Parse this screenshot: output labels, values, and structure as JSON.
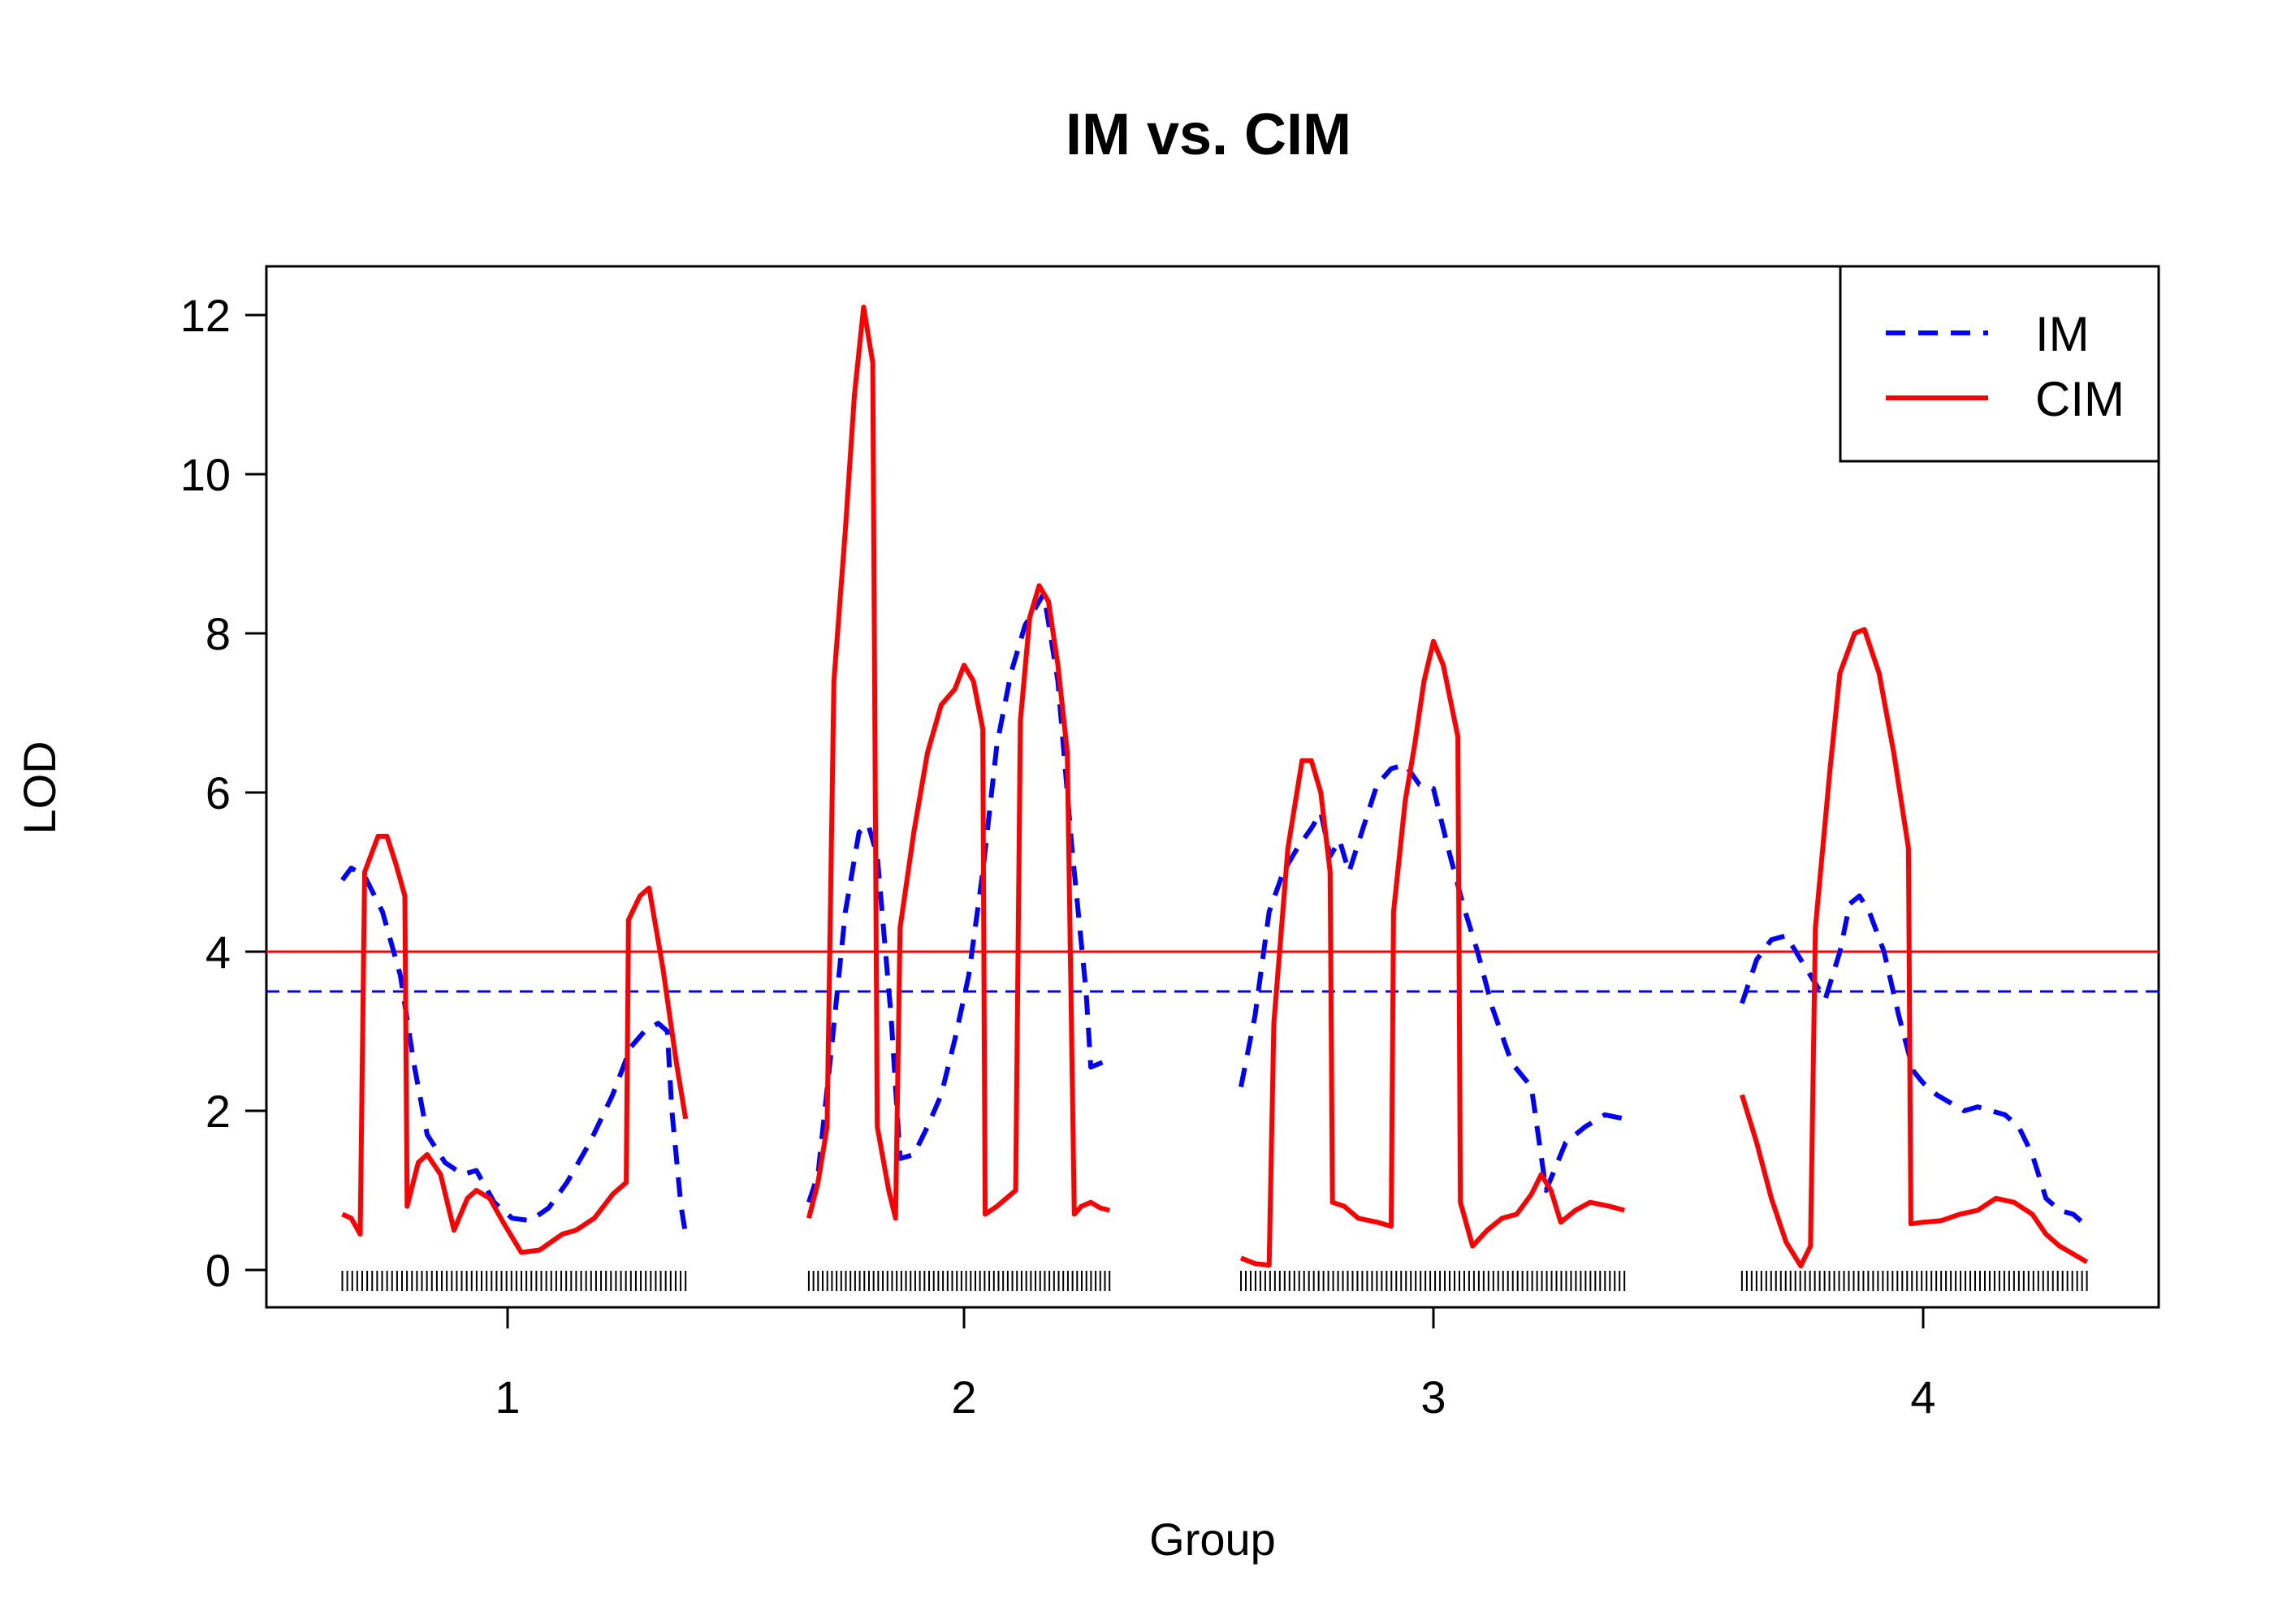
{
  "chart_data": {
    "type": "line",
    "title": "IM vs. CIM",
    "xlabel": "Group",
    "ylabel": "LOD",
    "ylim": [
      -0.45,
      12.65
    ],
    "y_ticks": [
      0,
      2,
      4,
      6,
      8,
      10,
      12
    ],
    "x_ticks": [
      "1",
      "2",
      "3",
      "4"
    ],
    "grid": false,
    "legend": {
      "position": "top-right",
      "entries": [
        {
          "label": "IM",
          "color": "#0000ff",
          "style": "dashed"
        },
        {
          "label": "CIM",
          "color": "#ff0000",
          "style": "solid"
        }
      ]
    },
    "thresholds": [
      {
        "series": "IM",
        "value": 3.5,
        "color": "#0000ff",
        "style": "dashed"
      },
      {
        "series": "CIM",
        "value": 4.0,
        "color": "#ff0000",
        "style": "solid"
      }
    ],
    "groups": [
      {
        "label": "1",
        "tick_pos": 1.0,
        "x_start": 0.63,
        "x_end": 1.39,
        "marker_count": 70,
        "series": [
          {
            "name": "IM",
            "color": "#0000ff",
            "style": "dashed",
            "points": [
              [
                0.63,
                4.9
              ],
              [
                0.65,
                5.05
              ],
              [
                0.68,
                4.95
              ],
              [
                0.72,
                4.5
              ],
              [
                0.76,
                3.7
              ],
              [
                0.79,
                2.6
              ],
              [
                0.82,
                1.7
              ],
              [
                0.86,
                1.35
              ],
              [
                0.9,
                1.2
              ],
              [
                0.93,
                1.25
              ],
              [
                0.97,
                0.85
              ],
              [
                1.01,
                0.65
              ],
              [
                1.05,
                0.62
              ],
              [
                1.09,
                0.78
              ],
              [
                1.13,
                1.1
              ],
              [
                1.18,
                1.6
              ],
              [
                1.23,
                2.2
              ],
              [
                1.27,
                2.8
              ],
              [
                1.3,
                3.0
              ],
              [
                1.33,
                3.1
              ],
              [
                1.35,
                3.0
              ],
              [
                1.36,
                2.0
              ],
              [
                1.38,
                0.8
              ],
              [
                1.39,
                0.45
              ]
            ]
          },
          {
            "name": "CIM",
            "color": "#ff0000",
            "style": "solid",
            "points": [
              [
                0.63,
                0.7
              ],
              [
                0.65,
                0.65
              ],
              [
                0.67,
                0.45
              ],
              [
                0.68,
                5.0
              ],
              [
                0.71,
                5.45
              ],
              [
                0.73,
                5.45
              ],
              [
                0.75,
                5.1
              ],
              [
                0.77,
                4.7
              ],
              [
                0.775,
                0.8
              ],
              [
                0.8,
                1.35
              ],
              [
                0.82,
                1.45
              ],
              [
                0.85,
                1.2
              ],
              [
                0.88,
                0.5
              ],
              [
                0.91,
                0.9
              ],
              [
                0.93,
                1.0
              ],
              [
                0.96,
                0.9
              ],
              [
                0.99,
                0.6
              ],
              [
                1.03,
                0.22
              ],
              [
                1.07,
                0.25
              ],
              [
                1.12,
                0.45
              ],
              [
                1.15,
                0.5
              ],
              [
                1.19,
                0.65
              ],
              [
                1.23,
                0.95
              ],
              [
                1.26,
                1.1
              ],
              [
                1.265,
                4.4
              ],
              [
                1.29,
                4.7
              ],
              [
                1.31,
                4.8
              ],
              [
                1.34,
                3.8
              ],
              [
                1.37,
                2.6
              ],
              [
                1.39,
                1.9
              ]
            ]
          }
        ]
      },
      {
        "label": "2",
        "tick_pos": 2.0,
        "x_start": 1.66,
        "x_end": 2.31,
        "marker_count": 66,
        "series": [
          {
            "name": "IM",
            "color": "#0000ff",
            "style": "dashed",
            "points": [
              [
                1.66,
                0.85
              ],
              [
                1.68,
                1.2
              ],
              [
                1.71,
                2.8
              ],
              [
                1.74,
                4.5
              ],
              [
                1.77,
                5.5
              ],
              [
                1.79,
                5.6
              ],
              [
                1.81,
                5.2
              ],
              [
                1.84,
                3.2
              ],
              [
                1.86,
                1.4
              ],
              [
                1.89,
                1.45
              ],
              [
                1.92,
                1.8
              ],
              [
                1.95,
                2.2
              ],
              [
                1.98,
                2.9
              ],
              [
                2.01,
                3.7
              ],
              [
                2.04,
                5.0
              ],
              [
                2.07,
                6.6
              ],
              [
                2.1,
                7.5
              ],
              [
                2.13,
                8.1
              ],
              [
                2.17,
                8.5
              ],
              [
                2.2,
                7.4
              ],
              [
                2.23,
                5.3
              ],
              [
                2.26,
                3.5
              ],
              [
                2.27,
                2.55
              ],
              [
                2.3,
                2.62
              ],
              [
                2.31,
                2.58
              ]
            ]
          },
          {
            "name": "CIM",
            "color": "#ff0000",
            "style": "solid",
            "points": [
              [
                1.66,
                0.65
              ],
              [
                1.68,
                1.1
              ],
              [
                1.7,
                1.8
              ],
              [
                1.715,
                7.4
              ],
              [
                1.74,
                9.3
              ],
              [
                1.76,
                11.0
              ],
              [
                1.78,
                12.1
              ],
              [
                1.8,
                11.4
              ],
              [
                1.81,
                1.8
              ],
              [
                1.835,
                1.0
              ],
              [
                1.85,
                0.65
              ],
              [
                1.86,
                4.3
              ],
              [
                1.89,
                5.5
              ],
              [
                1.92,
                6.5
              ],
              [
                1.95,
                7.1
              ],
              [
                1.98,
                7.3
              ],
              [
                2.0,
                7.6
              ],
              [
                2.02,
                7.4
              ],
              [
                2.04,
                6.8
              ],
              [
                2.045,
                0.7
              ],
              [
                2.07,
                0.8
              ],
              [
                2.09,
                0.9
              ],
              [
                2.11,
                1.0
              ],
              [
                2.12,
                6.9
              ],
              [
                2.14,
                8.2
              ],
              [
                2.16,
                8.6
              ],
              [
                2.18,
                8.4
              ],
              [
                2.2,
                7.6
              ],
              [
                2.22,
                6.5
              ],
              [
                2.235,
                0.7
              ],
              [
                2.25,
                0.8
              ],
              [
                2.27,
                0.85
              ],
              [
                2.29,
                0.78
              ],
              [
                2.31,
                0.75
              ]
            ]
          }
        ]
      },
      {
        "label": "3",
        "tick_pos": 3.0,
        "x_start": 2.59,
        "x_end": 3.39,
        "marker_count": 80,
        "series": [
          {
            "name": "IM",
            "color": "#0000ff",
            "style": "dashed",
            "points": [
              [
                2.59,
                2.3
              ],
              [
                2.62,
                3.2
              ],
              [
                2.65,
                4.5
              ],
              [
                2.68,
                5.0
              ],
              [
                2.71,
                5.3
              ],
              [
                2.74,
                5.55
              ],
              [
                2.76,
                5.75
              ],
              [
                2.78,
                5.2
              ],
              [
                2.8,
                5.4
              ],
              [
                2.82,
                5.0
              ],
              [
                2.85,
                5.55
              ],
              [
                2.88,
                6.1
              ],
              [
                2.91,
                6.3
              ],
              [
                2.94,
                6.35
              ],
              [
                2.97,
                6.1
              ],
              [
                3.0,
                6.05
              ],
              [
                3.03,
                5.3
              ],
              [
                3.06,
                4.6
              ],
              [
                3.09,
                4.0
              ],
              [
                3.12,
                3.3
              ],
              [
                3.16,
                2.6
              ],
              [
                3.2,
                2.3
              ],
              [
                3.23,
                1.0
              ],
              [
                3.27,
                1.6
              ],
              [
                3.31,
                1.8
              ],
              [
                3.35,
                1.95
              ],
              [
                3.39,
                1.9
              ]
            ]
          },
          {
            "name": "CIM",
            "color": "#ff0000",
            "style": "solid",
            "points": [
              [
                2.59,
                0.15
              ],
              [
                2.62,
                0.08
              ],
              [
                2.65,
                0.06
              ],
              [
                2.66,
                3.1
              ],
              [
                2.69,
                5.3
              ],
              [
                2.72,
                6.4
              ],
              [
                2.74,
                6.4
              ],
              [
                2.76,
                6.0
              ],
              [
                2.78,
                5.0
              ],
              [
                2.785,
                0.85
              ],
              [
                2.81,
                0.8
              ],
              [
                2.84,
                0.65
              ],
              [
                2.88,
                0.6
              ],
              [
                2.91,
                0.55
              ],
              [
                2.915,
                4.5
              ],
              [
                2.94,
                5.9
              ],
              [
                2.96,
                6.6
              ],
              [
                2.98,
                7.4
              ],
              [
                3.0,
                7.9
              ],
              [
                3.02,
                7.6
              ],
              [
                3.05,
                6.7
              ],
              [
                3.055,
                0.85
              ],
              [
                3.08,
                0.3
              ],
              [
                3.11,
                0.5
              ],
              [
                3.14,
                0.65
              ],
              [
                3.17,
                0.7
              ],
              [
                3.2,
                0.95
              ],
              [
                3.22,
                1.2
              ],
              [
                3.24,
                1.0
              ],
              [
                3.26,
                0.6
              ],
              [
                3.29,
                0.75
              ],
              [
                3.32,
                0.85
              ],
              [
                3.36,
                0.8
              ],
              [
                3.39,
                0.75
              ]
            ]
          }
        ]
      },
      {
        "label": "4",
        "tick_pos": 4.0,
        "x_start": 3.63,
        "x_end": 4.36,
        "marker_count": 72,
        "series": [
          {
            "name": "IM",
            "color": "#0000ff",
            "style": "dashed",
            "points": [
              [
                3.63,
                3.35
              ],
              [
                3.66,
                3.9
              ],
              [
                3.69,
                4.15
              ],
              [
                3.72,
                4.2
              ],
              [
                3.75,
                3.9
              ],
              [
                3.78,
                3.6
              ],
              [
                3.8,
                3.4
              ],
              [
                3.83,
                4.0
              ],
              [
                3.85,
                4.6
              ],
              [
                3.87,
                4.7
              ],
              [
                3.89,
                4.5
              ],
              [
                3.92,
                4.0
              ],
              [
                3.95,
                3.2
              ],
              [
                3.98,
                2.5
              ],
              [
                4.0,
                2.35
              ],
              [
                4.03,
                2.2
              ],
              [
                4.06,
                2.1
              ],
              [
                4.09,
                2.0
              ],
              [
                4.12,
                2.05
              ],
              [
                4.15,
                2.0
              ],
              [
                4.18,
                1.95
              ],
              [
                4.21,
                1.8
              ],
              [
                4.24,
                1.45
              ],
              [
                4.27,
                0.9
              ],
              [
                4.3,
                0.75
              ],
              [
                4.33,
                0.7
              ],
              [
                4.36,
                0.55
              ]
            ]
          },
          {
            "name": "CIM",
            "color": "#ff0000",
            "style": "solid",
            "points": [
              [
                3.63,
                2.2
              ],
              [
                3.66,
                1.6
              ],
              [
                3.69,
                0.9
              ],
              [
                3.72,
                0.35
              ],
              [
                3.75,
                0.05
              ],
              [
                3.77,
                0.3
              ],
              [
                3.78,
                4.3
              ],
              [
                3.81,
                6.3
              ],
              [
                3.83,
                7.5
              ],
              [
                3.86,
                8.0
              ],
              [
                3.88,
                8.05
              ],
              [
                3.91,
                7.5
              ],
              [
                3.94,
                6.5
              ],
              [
                3.97,
                5.3
              ],
              [
                3.975,
                0.58
              ],
              [
                4.0,
                0.6
              ],
              [
                4.04,
                0.62
              ],
              [
                4.08,
                0.7
              ],
              [
                4.12,
                0.75
              ],
              [
                4.16,
                0.9
              ],
              [
                4.2,
                0.85
              ],
              [
                4.24,
                0.7
              ],
              [
                4.27,
                0.45
              ],
              [
                4.3,
                0.3
              ],
              [
                4.33,
                0.2
              ],
              [
                4.36,
                0.1
              ]
            ]
          }
        ]
      }
    ]
  }
}
